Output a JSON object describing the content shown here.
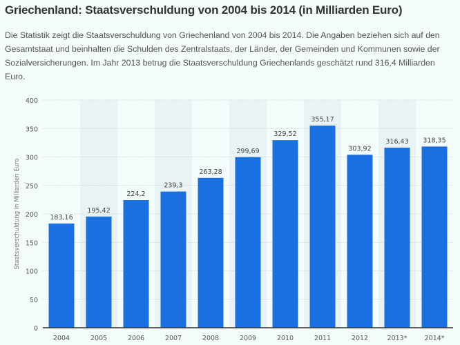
{
  "title": "Griechenland: Staatsverschuldung von 2004 bis 2014 (in Milliarden Euro)",
  "description": "Die Statistik zeigt die Staatsverschuldung von Griechenland von 2004 bis 2014. Die Angaben beziehen sich auf den Gesamtstaat und beinhalten die Schulden des Zentralstaats, der Länder, der Gemeinden und Kommunen sowie der Sozialversicherungen. Im Jahr 2013 betrug die Staatsverschuldung Griechenlands geschätzt rund 316,4 Milliarden Euro.",
  "chart_data": {
    "type": "bar",
    "title": "",
    "xlabel": "",
    "ylabel": "Staatsverschuldung in Milliarden Euro",
    "ylim": [
      0,
      400
    ],
    "yticks": [
      0,
      50,
      100,
      150,
      200,
      250,
      300,
      350,
      400
    ],
    "grid": true,
    "bar_color": "#1a70e0",
    "categories": [
      "2004",
      "2005",
      "2006",
      "2007",
      "2008",
      "2009",
      "2010",
      "2011",
      "2012",
      "2013*",
      "2014*"
    ],
    "values": [
      183.16,
      195.42,
      224.2,
      239.3,
      263.28,
      299.69,
      329.52,
      355.17,
      303.92,
      316.43,
      318.35
    ],
    "data_labels": [
      "183,16",
      "195,42",
      "224,2",
      "239,3",
      "263,28",
      "299,69",
      "329,52",
      "355,17",
      "303,92",
      "316,43",
      "318,35"
    ]
  }
}
